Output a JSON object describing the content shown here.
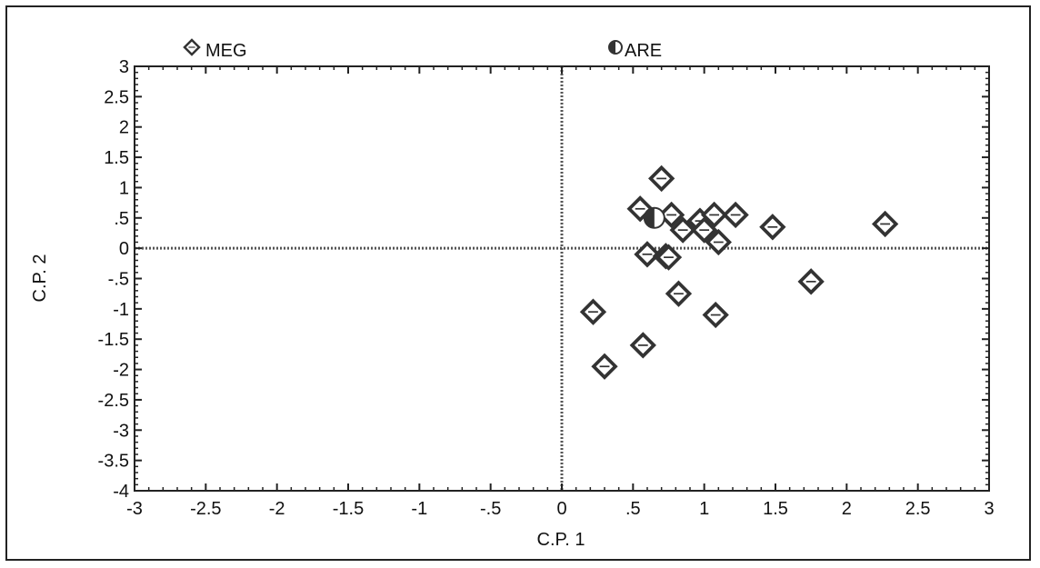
{
  "chart_data": {
    "type": "scatter",
    "xlabel": "C.P. 1",
    "ylabel": "C.P. 2",
    "xlim": [
      -3,
      3
    ],
    "ylim": [
      -4,
      3
    ],
    "x_ticks": [
      -3,
      -2.5,
      -2,
      -1.5,
      -1,
      -0.5,
      0,
      0.5,
      1,
      1.5,
      2,
      2.5,
      3
    ],
    "x_tick_labels": [
      "-3",
      "-2.5",
      "-2",
      "-1.5",
      "-1",
      "-.5",
      "0",
      ".5",
      "1",
      "1.5",
      "2",
      "2.5",
      "3"
    ],
    "y_ticks": [
      3,
      2.5,
      2,
      1.5,
      1,
      0.5,
      0,
      -0.5,
      -1,
      -1.5,
      -2,
      -2.5,
      -3,
      -3.5,
      -4
    ],
    "y_tick_labels": [
      "3",
      "2.5",
      "2",
      "1.5",
      "1",
      ".5",
      "0",
      "-.5",
      "-1",
      "-1.5",
      "-2",
      "-2.5",
      "-3",
      "-3.5",
      "-4"
    ],
    "legend": {
      "placement": "top",
      "entries": [
        "MEG",
        "ARE"
      ]
    },
    "grid": false,
    "reference_lines": {
      "x": 0,
      "y": 0
    },
    "series": [
      {
        "name": "MEG",
        "marker": "diamond",
        "points": [
          {
            "x": 0.55,
            "y": 0.65
          },
          {
            "x": 0.7,
            "y": 1.15
          },
          {
            "x": 0.77,
            "y": 0.55
          },
          {
            "x": 0.85,
            "y": 0.3
          },
          {
            "x": 0.97,
            "y": 0.45
          },
          {
            "x": 1.0,
            "y": 0.3
          },
          {
            "x": 1.07,
            "y": 0.55
          },
          {
            "x": 1.22,
            "y": 0.55
          },
          {
            "x": 1.1,
            "y": 0.1
          },
          {
            "x": 1.48,
            "y": 0.35
          },
          {
            "x": 2.27,
            "y": 0.4
          },
          {
            "x": 0.6,
            "y": -0.1
          },
          {
            "x": 0.73,
            "y": -0.13
          },
          {
            "x": 0.75,
            "y": -0.15
          },
          {
            "x": 0.82,
            "y": -0.75
          },
          {
            "x": 1.75,
            "y": -0.55
          },
          {
            "x": 1.08,
            "y": -1.1
          },
          {
            "x": 0.22,
            "y": -1.05
          },
          {
            "x": 0.57,
            "y": -1.6
          },
          {
            "x": 0.3,
            "y": -1.95
          }
        ]
      },
      {
        "name": "ARE",
        "marker": "half-filled-circle",
        "points": [
          {
            "x": 0.65,
            "y": 0.5
          }
        ]
      }
    ]
  }
}
